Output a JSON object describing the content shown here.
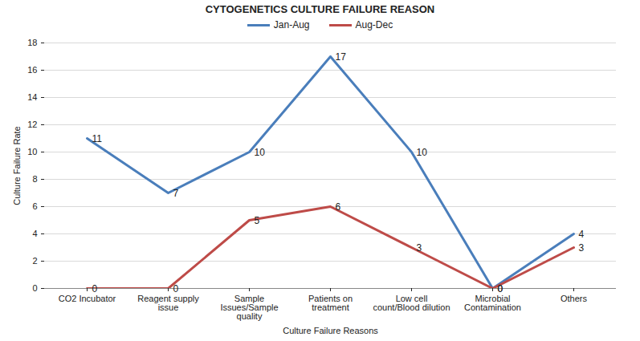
{
  "chart_data": {
    "type": "line",
    "title": "CYTOGENETICS CULTURE FAILURE REASON",
    "x_label": "Culture Failure Reasons",
    "y_label": "Culture Failure Rate",
    "categories": [
      "CO2 Incubator",
      "Reagent supply issue",
      "Sample Issues/Sample quality",
      "Patients on treatment",
      "Low cell count/Blood dilution",
      "Microbial Contamination",
      "Others"
    ],
    "series": [
      {
        "name": "Jan-Aug",
        "color": "#4a7ebb",
        "values": [
          11,
          7,
          10,
          17,
          10,
          0,
          4
        ]
      },
      {
        "name": "Aug-Dec",
        "color": "#be4b48",
        "values": [
          0,
          0,
          5,
          6,
          3,
          0,
          3
        ]
      }
    ],
    "ylim": [
      0,
      18
    ],
    "yticks": [
      0,
      2,
      4,
      6,
      8,
      10,
      12,
      14,
      16,
      18
    ],
    "grid": true,
    "legend": "top",
    "data_labels": true
  }
}
